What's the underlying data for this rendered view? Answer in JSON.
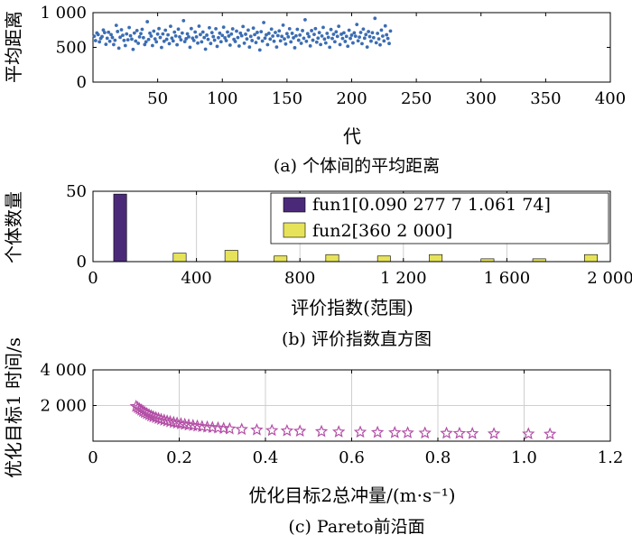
{
  "chart_data": [
    {
      "type": "scatter",
      "caption": "(a) 个体间的平均距离",
      "xlabel": "代",
      "ylabel": "平均距离",
      "xlim": [
        0,
        400
      ],
      "ylim": [
        0,
        1000
      ],
      "xticks": [
        50,
        100,
        150,
        200,
        250,
        300,
        350,
        400
      ],
      "xtick_labels": [
        "50",
        "100",
        "150",
        "200",
        "250",
        "300",
        "350",
        "400"
      ],
      "yticks": [
        0,
        500,
        1000
      ],
      "ytick_labels": [
        "0",
        "500",
        "1 000"
      ],
      "grid": false,
      "marker": "dot",
      "color": "#3b6db3",
      "x": [
        1,
        2,
        3,
        4,
        5,
        6,
        7,
        8,
        9,
        10,
        11,
        12,
        13,
        14,
        15,
        16,
        17,
        18,
        19,
        20,
        21,
        22,
        23,
        24,
        25,
        26,
        27,
        28,
        29,
        30,
        31,
        32,
        33,
        34,
        35,
        36,
        37,
        38,
        39,
        40,
        41,
        42,
        43,
        44,
        45,
        46,
        47,
        48,
        49,
        50,
        51,
        52,
        53,
        54,
        55,
        56,
        57,
        58,
        59,
        60,
        61,
        62,
        63,
        64,
        65,
        66,
        67,
        68,
        69,
        70,
        71,
        72,
        73,
        74,
        75,
        76,
        77,
        78,
        79,
        80,
        81,
        82,
        83,
        84,
        85,
        86,
        87,
        88,
        89,
        90,
        91,
        92,
        93,
        94,
        95,
        96,
        97,
        98,
        99,
        100,
        101,
        102,
        103,
        104,
        105,
        106,
        107,
        108,
        109,
        110,
        111,
        112,
        113,
        114,
        115,
        116,
        117,
        118,
        119,
        120,
        121,
        122,
        123,
        124,
        125,
        126,
        127,
        128,
        129,
        130,
        131,
        132,
        133,
        134,
        135,
        136,
        137,
        138,
        139,
        140,
        141,
        142,
        143,
        144,
        145,
        146,
        147,
        148,
        149,
        150,
        151,
        152,
        153,
        154,
        155,
        156,
        157,
        158,
        159,
        160,
        161,
        162,
        163,
        164,
        165,
        166,
        167,
        168,
        169,
        170,
        171,
        172,
        173,
        174,
        175,
        176,
        177,
        178,
        179,
        180,
        181,
        182,
        183,
        184,
        185,
        186,
        187,
        188,
        189,
        190,
        191,
        192,
        193,
        194,
        195,
        196,
        197,
        198,
        199,
        200,
        201,
        202,
        203,
        204,
        205,
        206,
        207,
        208,
        209,
        210,
        211,
        212,
        213,
        214,
        215,
        216,
        217,
        218,
        219,
        220,
        221,
        222,
        223,
        224,
        225,
        226,
        227,
        228,
        229,
        230
      ],
      "y": [
        660,
        597,
        708,
        684,
        580,
        628,
        655,
        749,
        712,
        544,
        631,
        718,
        588,
        683,
        642,
        540,
        602,
        817,
        728,
        489,
        645,
        753,
        674,
        600,
        526,
        693,
        609,
        785,
        667,
        618,
        471,
        706,
        591,
        742,
        558,
        651,
        698,
        760,
        639,
        540,
        580,
        869,
        614,
        704,
        663,
        526,
        734,
        621,
        580,
        691,
        770,
        642,
        498,
        693,
        587,
        747,
        616,
        680,
        553,
        804,
        633,
        593,
        719,
        664,
        537,
        762,
        651,
        609,
        706,
        884,
        583,
        624,
        694,
        651,
        501,
        770,
        633,
        599,
        721,
        651,
        562,
        805,
        684,
        580,
        721,
        641,
        474,
        676,
        615,
        782,
        556,
        712,
        655,
        604,
        768,
        514,
        639,
        704,
        581,
        672,
        791,
        637,
        597,
        721,
        663,
        532,
        692,
        766,
        615,
        584,
        734,
        641,
        519,
        705,
        667,
        800,
        560,
        689,
        621,
        748,
        504,
        658,
        598,
        777,
        683,
        569,
        715,
        634,
        462,
        726,
        591,
        857,
        632,
        681,
        539,
        702,
        619,
        763,
        662,
        588,
        714,
        505,
        669,
        737,
        594,
        658,
        820,
        621,
        548,
        697,
        651,
        768,
        579,
        702,
        637,
        494,
        666,
        760,
        603,
        677,
        558,
        741,
        631,
        897,
        587,
        697,
        654,
        521,
        741,
        603,
        686,
        769,
        575,
        633,
        712,
        541,
        664,
        787,
        619,
        563,
        701,
        644,
        502,
        757,
        628,
        688,
        581,
        724,
        658,
        803,
        540,
        689,
        628,
        709,
        585,
        658,
        516,
        747,
        629,
        676,
        564,
        709,
        661,
        829,
        594,
        648,
        714,
        554,
        763,
        632,
        684,
        505,
        727,
        655,
        590,
        711,
        640,
        918,
        567,
        701,
        622,
        536,
        748,
        662,
        593,
        809,
        681,
        628,
        556,
        735
      ]
    },
    {
      "type": "bar",
      "caption": "(b) 评价指数直方图",
      "xlabel": "评价指数(范围)",
      "ylabel": "个体数量",
      "xlim": [
        0,
        2000
      ],
      "ylim": [
        0,
        50
      ],
      "xticks": [
        0,
        400,
        800,
        1200,
        1600,
        2000
      ],
      "xtick_labels": [
        "0",
        "400",
        "800",
        "1 200",
        "1 600",
        "2 000"
      ],
      "yticks": [
        0,
        50
      ],
      "ytick_labels": [
        "0",
        "50"
      ],
      "grid": true,
      "legend": "top-right",
      "series": [
        {
          "name": "fun1[0.090 277 7  1.061 74]",
          "color": "#4a2a78",
          "bins": [
            [
              80,
              130
            ]
          ],
          "values": [
            48
          ]
        },
        {
          "name": "fun2[360  2 000]",
          "color": "#e6e35a",
          "bins": [
            [
              310,
              360
            ],
            [
              510,
              560
            ],
            [
              700,
              750
            ],
            [
              900,
              950
            ],
            [
              1100,
              1150
            ],
            [
              1300,
              1350
            ],
            [
              1500,
              1550
            ],
            [
              1700,
              1750
            ],
            [
              1900,
              1950
            ]
          ],
          "values": [
            6,
            8,
            4,
            5,
            4,
            5,
            2,
            2,
            5
          ]
        }
      ]
    },
    {
      "type": "scatter",
      "caption": "(c) Pareto前沿面",
      "xlabel": "优化目标2总冲量/(m·s⁻¹)",
      "ylabel": "优化目标1 时间/s",
      "xlim": [
        0,
        1.2
      ],
      "ylim": [
        0,
        4000
      ],
      "xticks": [
        0,
        0.2,
        0.4,
        0.6,
        0.8,
        1.0,
        1.2
      ],
      "xtick_labels": [
        "0",
        "0.2",
        "0.4",
        "0.6",
        "0.8",
        "1.0",
        "1.2"
      ],
      "yticks": [
        2000,
        4000
      ],
      "ytick_labels": [
        "2 000",
        "4 000"
      ],
      "grid": true,
      "marker": "star",
      "color": "#b34ea6",
      "x": [
        0.1,
        0.104,
        0.108,
        0.112,
        0.116,
        0.12,
        0.125,
        0.13,
        0.135,
        0.14,
        0.146,
        0.152,
        0.158,
        0.165,
        0.172,
        0.179,
        0.187,
        0.195,
        0.204,
        0.213,
        0.222,
        0.232,
        0.242,
        0.253,
        0.265,
        0.277,
        0.29,
        0.303,
        0.317,
        0.345,
        0.38,
        0.415,
        0.45,
        0.48,
        0.53,
        0.57,
        0.62,
        0.66,
        0.7,
        0.73,
        0.77,
        0.82,
        0.85,
        0.88,
        0.93,
        1.01,
        1.06
      ],
      "y": [
        1950,
        1880,
        1810,
        1740,
        1670,
        1600,
        1540,
        1480,
        1420,
        1370,
        1320,
        1270,
        1220,
        1175,
        1130,
        1090,
        1050,
        1010,
        975,
        940,
        905,
        875,
        845,
        815,
        790,
        765,
        740,
        715,
        690,
        660,
        630,
        600,
        580,
        560,
        540,
        520,
        505,
        490,
        475,
        465,
        455,
        445,
        435,
        425,
        415,
        405,
        395
      ]
    }
  ]
}
